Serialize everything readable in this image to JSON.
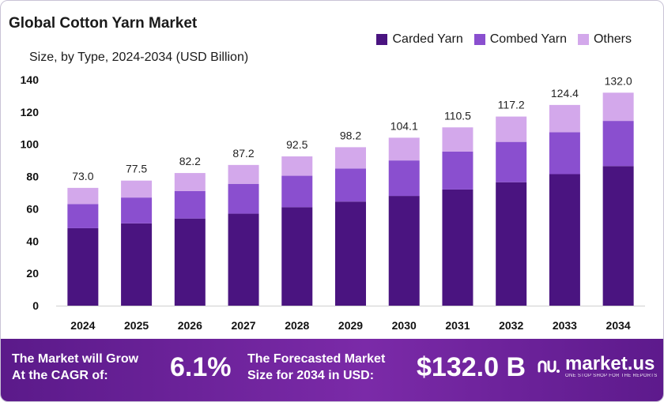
{
  "title": "Global Cotton Yarn Market",
  "subtitle": "Size, by Type, 2024-2034 (USD Billion)",
  "colors": {
    "carded": "#4a1480",
    "combed": "#8a4fcf",
    "others": "#d3a8eb"
  },
  "chart_data": {
    "type": "bar",
    "stacked": true,
    "categories": [
      "2024",
      "2025",
      "2026",
      "2027",
      "2028",
      "2029",
      "2030",
      "2031",
      "2032",
      "2033",
      "2034"
    ],
    "series": [
      {
        "name": "Carded Yarn",
        "values": [
          48,
          51,
          54,
          57,
          61,
          64.5,
          68,
          72,
          76.5,
          81.5,
          86.5
        ]
      },
      {
        "name": "Combed Yarn",
        "values": [
          15,
          16,
          17,
          18.5,
          19.5,
          20.5,
          22,
          23.5,
          25,
          26,
          28
        ]
      },
      {
        "name": "Others",
        "values": [
          10,
          10.5,
          11.2,
          11.7,
          12,
          13.2,
          14.1,
          15,
          15.7,
          16.9,
          17.5
        ]
      }
    ],
    "totals": [
      "73.0",
      "77.5",
      "82.2",
      "87.2",
      "92.5",
      "98.2",
      "104.1",
      "110.5",
      "117.2",
      "124.4",
      "132.0"
    ],
    "yticks": [
      "0",
      "20",
      "40",
      "60",
      "80",
      "100",
      "120",
      "140"
    ],
    "ylim": [
      0,
      140
    ],
    "legend_position": "top-right"
  },
  "footer": {
    "cagr_label_line1": "The Market will Grow",
    "cagr_label_line2": "At the CAGR of:",
    "cagr_value": "6.1%",
    "forecast_label_line1": "The Forecasted Market",
    "forecast_label_line2": "Size for 2034 in USD:",
    "forecast_value": "$132.0 B",
    "brand": "market.us",
    "brand_tagline": "ONE STOP SHOP FOR THE REPORTS"
  }
}
